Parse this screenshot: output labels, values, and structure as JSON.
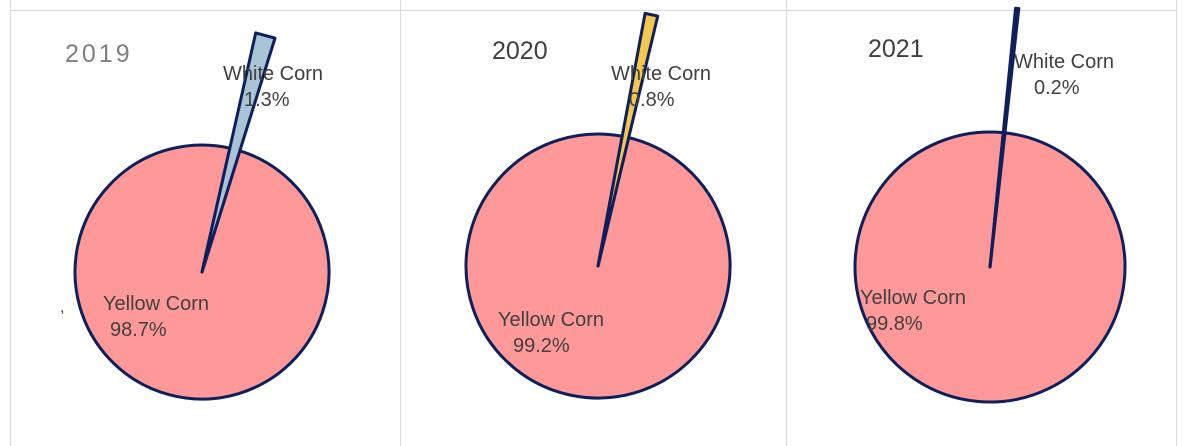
{
  "colors": {
    "yellow_corn": "#ff9999",
    "white_corn_2019": "#a9c4d4",
    "white_corn_2020": "#f2c94c",
    "white_corn_2021": "#1f2f6b",
    "outline": "#0e1f5b",
    "panel_border": "#d9d9d9",
    "text": "#404040"
  },
  "stray_mark": ",",
  "chart_data": [
    {
      "type": "pie",
      "title": "2019",
      "slices": [
        {
          "label": "White Corn",
          "value": 1.3,
          "value_label": "1.3%",
          "exploded": true
        },
        {
          "label": "Yellow Corn",
          "value": 98.7,
          "value_label": "98.7%"
        }
      ]
    },
    {
      "type": "pie",
      "title": "2020",
      "slices": [
        {
          "label": "White Corn",
          "value": 0.8,
          "value_label": "0.8%",
          "exploded": true
        },
        {
          "label": "Yellow Corn",
          "value": 99.2,
          "value_label": "99.2%"
        }
      ]
    },
    {
      "type": "pie",
      "title": "2021",
      "slices": [
        {
          "label": "White Corn",
          "value": 0.2,
          "value_label": "0.2%",
          "exploded": true
        },
        {
          "label": "Yellow Corn",
          "value": 99.8,
          "value_label": "99.8%"
        }
      ]
    }
  ]
}
